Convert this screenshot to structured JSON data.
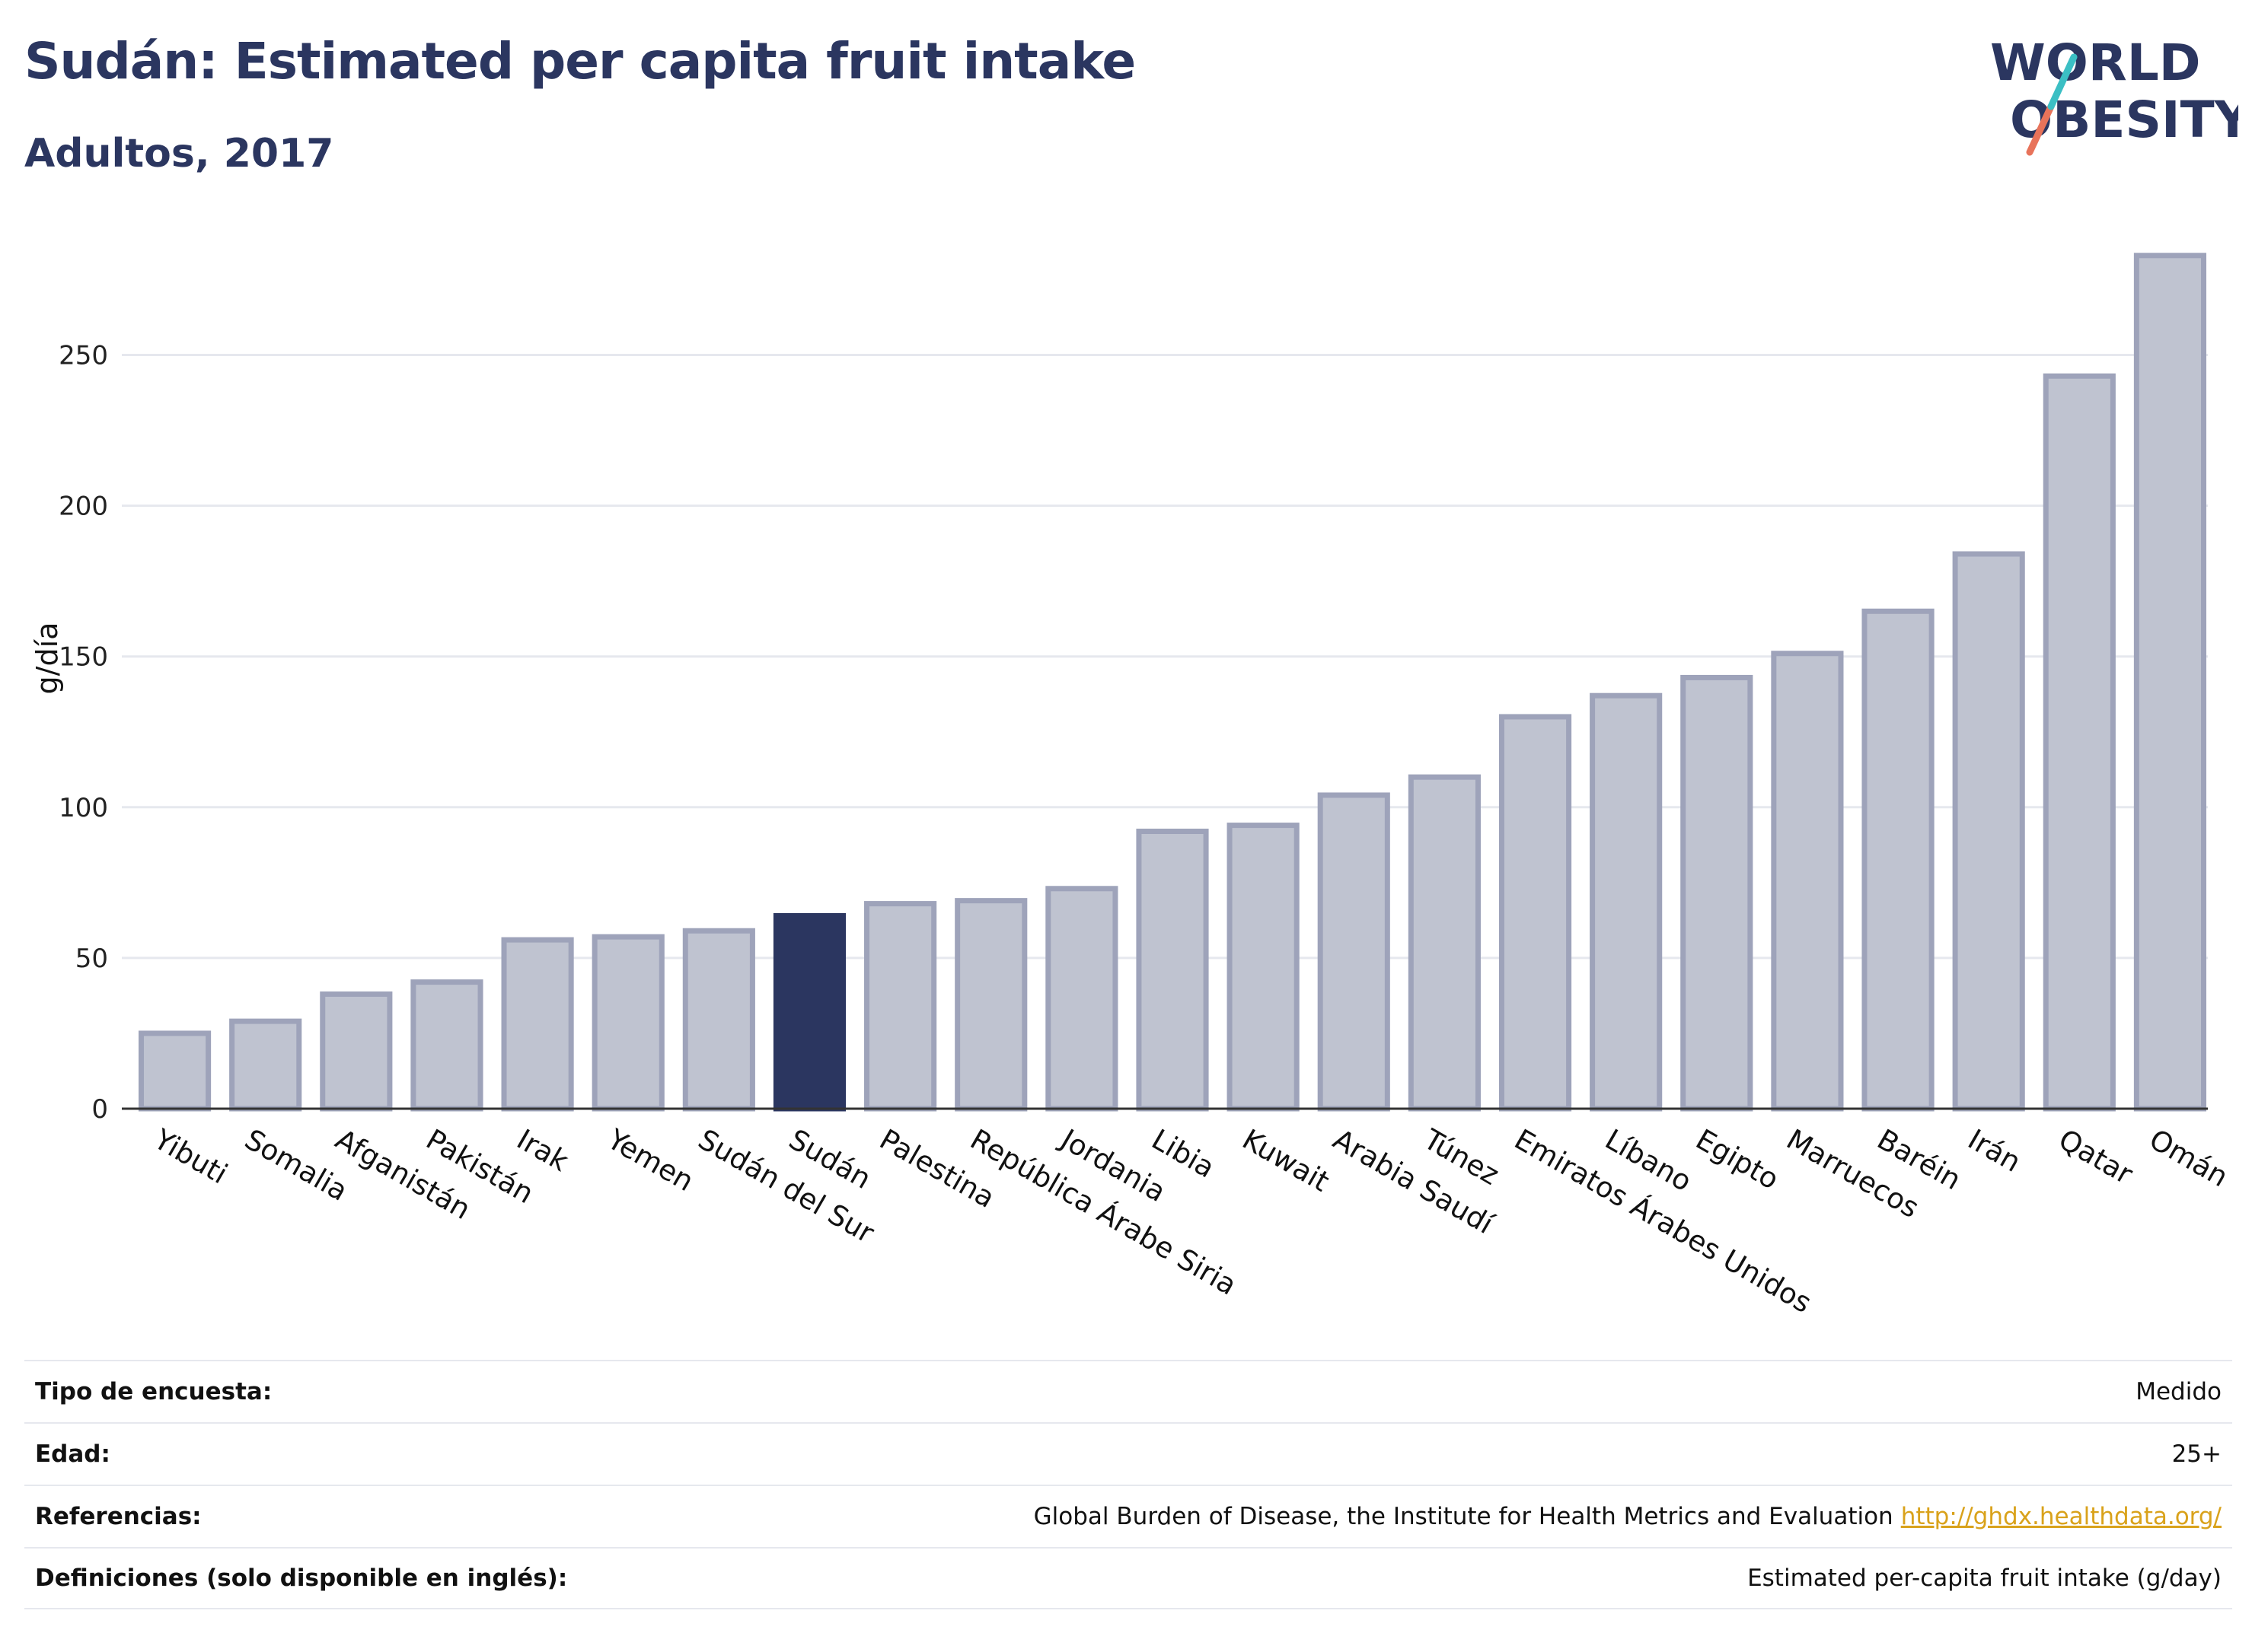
{
  "header": {
    "title": "Sudán: Estimated per capita fruit intake",
    "subtitle": "Adultos, 2017"
  },
  "logo": {
    "line1": "WORLD",
    "line2": "OBESITY"
  },
  "colors": {
    "bar": "#bfc3d0",
    "bar_stroke": "#9ea3ba",
    "highlight": "#2b3660",
    "text": "#2b3660",
    "link": "#d9a21b"
  },
  "chart_data": {
    "type": "bar",
    "ylabel": "g/día",
    "ylim": [
      0,
      290
    ],
    "yticks": [
      0,
      50,
      100,
      150,
      200,
      250
    ],
    "grid": true,
    "highlight": "Sudán",
    "categories": [
      "Yibuti",
      "Somalia",
      "Afganistán",
      "Pakistán",
      "Irak",
      "Yemen",
      "Sudán del Sur",
      "Sudán",
      "Palestina",
      "República Árabe Siria",
      "Jordania",
      "Libia",
      "Kuwait",
      "Arabia Saudí",
      "Túnez",
      "Emiratos Árabes Unidos",
      "Líbano",
      "Egipto",
      "Marruecos",
      "Baréin",
      "Irán",
      "Qatar",
      "Omán"
    ],
    "values": [
      25,
      29,
      38,
      42,
      56,
      57,
      59,
      64,
      68,
      69,
      73,
      92,
      94,
      104,
      110,
      130,
      137,
      143,
      151,
      165,
      184,
      243,
      283
    ]
  },
  "info": [
    {
      "label": "Tipo de encuesta:",
      "value": "Medido"
    },
    {
      "label": "Edad:",
      "value": "25+"
    },
    {
      "label": "Referencias:",
      "value": "Global Burden of Disease, the Institute for Health Metrics and Evaluation",
      "link": "http://ghdx.healthdata.org/"
    },
    {
      "label": "Definiciones (solo disponible en inglés):",
      "value": "Estimated per-capita fruit intake (g/day)"
    }
  ]
}
